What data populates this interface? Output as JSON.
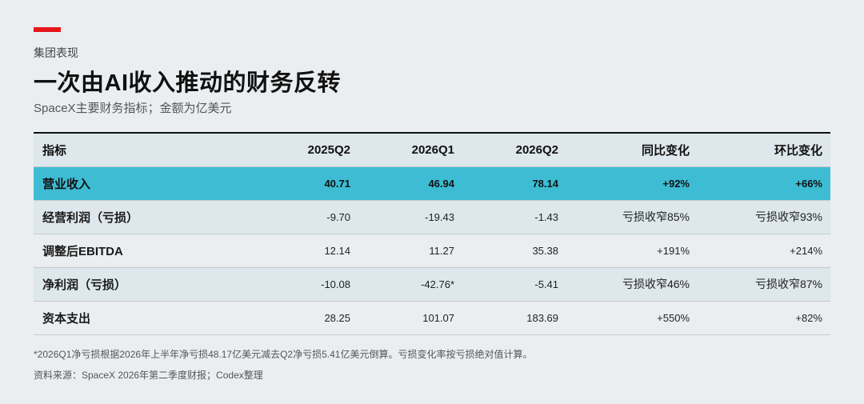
{
  "header": {
    "eyebrow": "集团表现",
    "title": "一次由AI收入推动的财务反转",
    "subtitle": "SpaceX主要财务指标；金额为亿美元",
    "accent_color": "#e5161b"
  },
  "table": {
    "columns": [
      "指标",
      "2025Q2",
      "2026Q1",
      "2026Q2",
      "同比变化",
      "环比变化"
    ],
    "rows": [
      [
        "营业收入",
        "40.71",
        "46.94",
        "78.14",
        "+92%",
        "+66%"
      ],
      [
        "经营利润（亏损）",
        "-9.70",
        "-19.43",
        "-1.43",
        "亏损收窄85%",
        "亏损收窄93%"
      ],
      [
        "调整后EBITDA",
        "12.14",
        "11.27",
        "35.38",
        "+191%",
        "+214%"
      ],
      [
        "净利润（亏损）",
        "-10.08",
        "-42.76*",
        "-5.41",
        "亏损收窄46%",
        "亏损收窄87%"
      ],
      [
        "资本支出",
        "28.25",
        "101.07",
        "183.69",
        "+550%",
        "+82%"
      ]
    ],
    "highlight_color": "#3dbcd3"
  },
  "footer": {
    "footnote": "*2026Q1净亏损根据2026年上半年净亏损48.17亿美元减去Q2净亏损5.41亿美元倒算。亏损变化率按亏损绝对值计算。",
    "source": "资料来源：SpaceX 2026年第二季度财报；Codex整理"
  }
}
